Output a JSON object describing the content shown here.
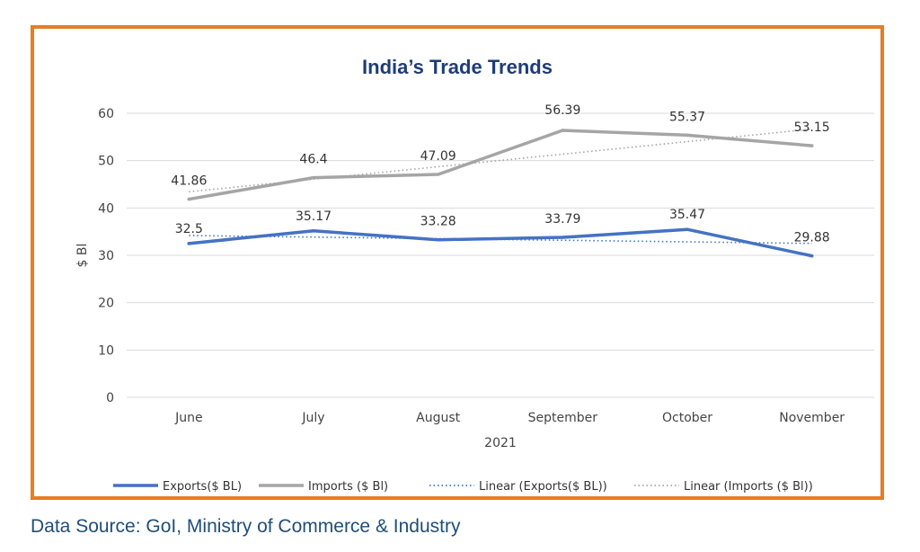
{
  "chart_data": {
    "type": "line",
    "title": "India’s Trade Trends",
    "xlabel": "2021",
    "ylabel": "$ Bl",
    "categories": [
      "June",
      "July",
      "August",
      "September",
      "October",
      "November"
    ],
    "ylim": [
      0,
      60
    ],
    "yticks": [
      0,
      10,
      20,
      30,
      40,
      50,
      60
    ],
    "grid": true,
    "legend_position": "bottom",
    "series": [
      {
        "name": "Exports($ BL)",
        "values": [
          32.5,
          35.17,
          33.28,
          33.79,
          35.47,
          29.88
        ],
        "labels": [
          "32.5",
          "35.17",
          "33.28",
          "33.79",
          "35.47",
          "29.88"
        ],
        "color": "#4472c4",
        "style": "solid"
      },
      {
        "name": "Imports ($ Bl)",
        "values": [
          41.86,
          46.4,
          47.09,
          56.39,
          55.37,
          53.15
        ],
        "labels": [
          "41.86",
          "46.4",
          "47.09",
          "56.39",
          "55.37",
          "53.15"
        ],
        "color": "#a5a5a5",
        "style": "solid"
      }
    ],
    "trendlines": [
      {
        "name": "Linear (Exports($ BL))",
        "of_series": 0,
        "color": "#4472c4",
        "style": "dotted"
      },
      {
        "name": "Linear (Imports ($ Bl))",
        "of_series": 1,
        "color": "#a5a5a5",
        "style": "dotted"
      }
    ]
  },
  "source": "Data Source: GoI, Ministry of Commerce & Industry",
  "colors": {
    "frame": "#e67e22",
    "title": "#1f3c78",
    "source": "#1f4e79",
    "grid": "#d9d9d9"
  }
}
